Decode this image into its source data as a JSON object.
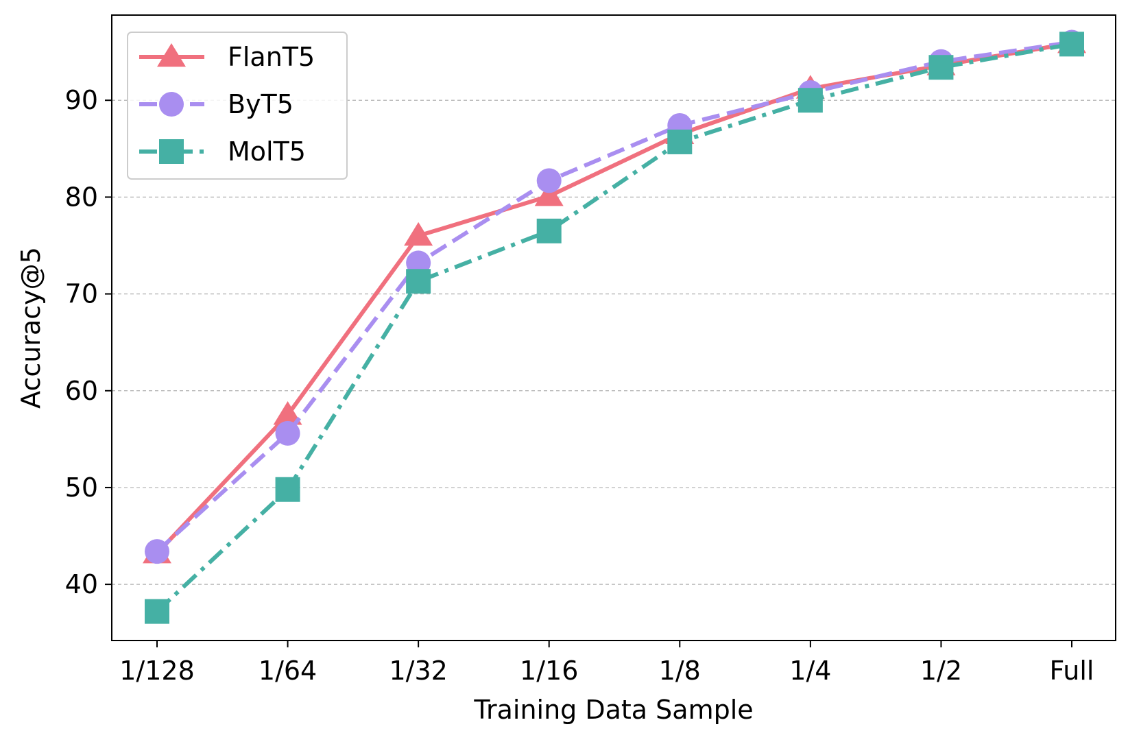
{
  "chart_data": {
    "type": "line",
    "title": "",
    "xlabel": "Training Data Sample",
    "ylabel": "Accuracy@5",
    "categories": [
      "1/128",
      "1/64",
      "1/32",
      "1/16",
      "1/8",
      "1/4",
      "1/2",
      "Full"
    ],
    "ylim": [
      34.2,
      98.8
    ],
    "yticks": [
      40,
      50,
      60,
      70,
      80,
      90
    ],
    "grid": "horizontal dashed",
    "legend_position": "top-left",
    "series": [
      {
        "name": "FlanT5",
        "values": [
          43.2,
          57.5,
          76.0,
          80.1,
          86.5,
          91.2,
          93.6,
          95.9
        ],
        "color": "#f0707e",
        "line_style": "solid",
        "marker": "triangle"
      },
      {
        "name": "ByT5",
        "values": [
          43.4,
          55.6,
          73.2,
          81.7,
          87.4,
          90.8,
          94.0,
          96.0
        ],
        "color": "#a98ef0",
        "line_style": "dashed",
        "marker": "circle"
      },
      {
        "name": "MolT5",
        "values": [
          37.2,
          49.8,
          71.3,
          76.5,
          85.7,
          90.0,
          93.4,
          95.8
        ],
        "color": "#45b0a4",
        "line_style": "dash-dot",
        "marker": "square"
      }
    ]
  }
}
